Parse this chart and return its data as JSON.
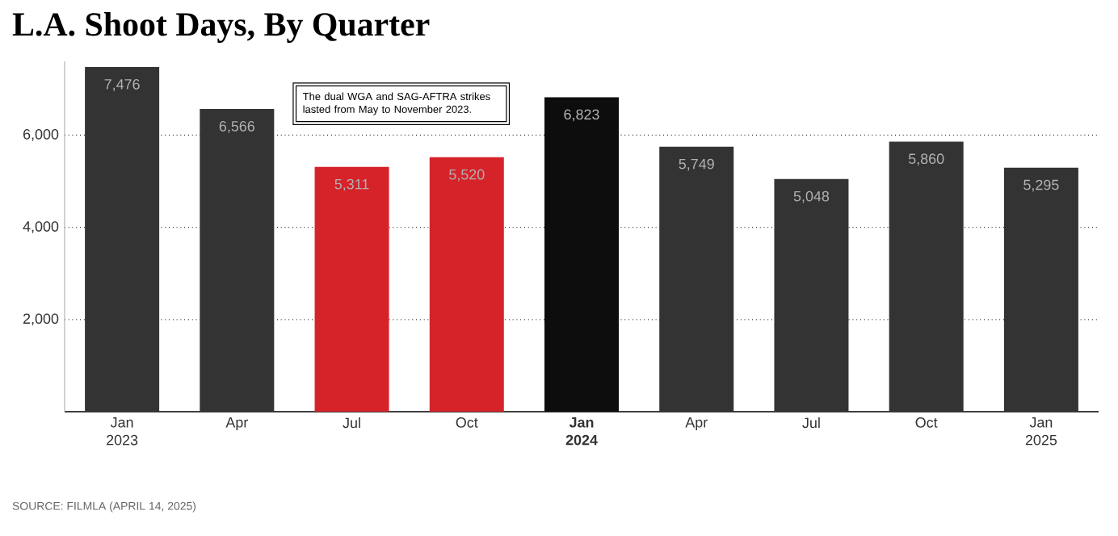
{
  "chart_data": {
    "type": "bar",
    "title": "L.A. Shoot Days, By Quarter",
    "categories": [
      "Jan 2023",
      "Apr",
      "Jul",
      "Oct",
      "**Jan 2024**",
      "Apr",
      "Jul",
      "Oct",
      "Jan 2025"
    ],
    "values": [
      7476,
      6566,
      5311,
      5520,
      6823,
      5749,
      5048,
      5860,
      5295
    ],
    "value_labels": [
      "7,476",
      "6,566",
      "5,311",
      "5,520",
      "6,823",
      "5,749",
      "5,048",
      "5,860",
      "5,295"
    ],
    "colors": [
      "#333333",
      "#333333",
      "#d6232a",
      "#d6232a",
      "#0d0d0d",
      "#333333",
      "#333333",
      "#333333",
      "#333333"
    ],
    "ylim": [
      0,
      7600
    ],
    "yticks": [
      {
        "value": 2000,
        "label": "2,000"
      },
      {
        "value": 4000,
        "label": "4,000"
      },
      {
        "value": 6000,
        "label": "6,000"
      }
    ],
    "grid": "y",
    "annotations": [
      "The dual WGA and SAG-AFTRA strikes lasted from May to November 2023.",
      "SOURCE: FILMLA (APRIL 14, 2025)"
    ]
  }
}
